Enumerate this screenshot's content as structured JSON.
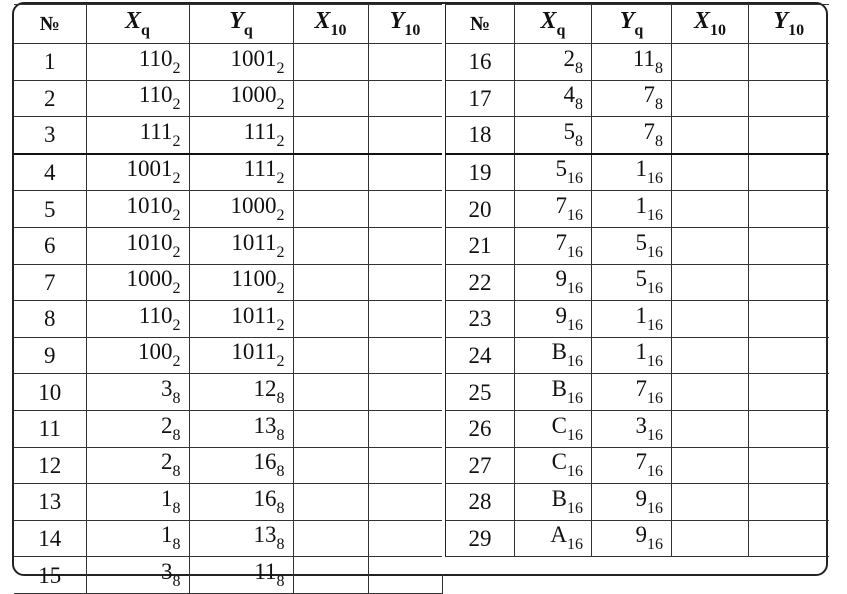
{
  "left": {
    "header": [
      {
        "text": "№"
      },
      {
        "text": "X",
        "sub": "q"
      },
      {
        "text": "Y",
        "sub": "q"
      },
      {
        "text": "X",
        "sub": "10"
      },
      {
        "text": "Y",
        "sub": "10"
      }
    ],
    "rows": [
      {
        "n": "1",
        "x": {
          "v": "110",
          "b": "2"
        },
        "y": {
          "v": "1001",
          "b": "2"
        }
      },
      {
        "n": "2",
        "x": {
          "v": "110",
          "b": "2"
        },
        "y": {
          "v": "1000",
          "b": "2"
        }
      },
      {
        "n": "3",
        "x": {
          "v": "111",
          "b": "2"
        },
        "y": {
          "v": "111",
          "b": "2"
        }
      },
      {
        "n": "4",
        "x": {
          "v": "1001",
          "b": "2"
        },
        "y": {
          "v": "111",
          "b": "2"
        }
      },
      {
        "n": "5",
        "x": {
          "v": "1010",
          "b": "2"
        },
        "y": {
          "v": "1000",
          "b": "2"
        }
      },
      {
        "n": "6",
        "x": {
          "v": "1010",
          "b": "2"
        },
        "y": {
          "v": "1011",
          "b": "2"
        }
      },
      {
        "n": "7",
        "x": {
          "v": "1000",
          "b": "2"
        },
        "y": {
          "v": "1100",
          "b": "2"
        }
      },
      {
        "n": "8",
        "x": {
          "v": "110",
          "b": "2"
        },
        "y": {
          "v": "1011",
          "b": "2"
        }
      },
      {
        "n": "9",
        "x": {
          "v": "100",
          "b": "2"
        },
        "y": {
          "v": "1011",
          "b": "2"
        }
      },
      {
        "n": "10",
        "x": {
          "v": "3",
          "b": "8"
        },
        "y": {
          "v": "12",
          "b": "8"
        }
      },
      {
        "n": "11",
        "x": {
          "v": "2",
          "b": "8"
        },
        "y": {
          "v": "13",
          "b": "8"
        }
      },
      {
        "n": "12",
        "x": {
          "v": "2",
          "b": "8"
        },
        "y": {
          "v": "16",
          "b": "8"
        }
      },
      {
        "n": "13",
        "x": {
          "v": "1",
          "b": "8"
        },
        "y": {
          "v": "16",
          "b": "8"
        }
      },
      {
        "n": "14",
        "x": {
          "v": "1",
          "b": "8"
        },
        "y": {
          "v": "13",
          "b": "8"
        }
      },
      {
        "n": "15",
        "x": {
          "v": "3",
          "b": "8"
        },
        "y": {
          "v": "11",
          "b": "8"
        }
      }
    ]
  },
  "right": {
    "header": [
      {
        "text": "№"
      },
      {
        "text": "X",
        "sub": "q"
      },
      {
        "text": "Y",
        "sub": "q"
      },
      {
        "text": "X",
        "sub": "10"
      },
      {
        "text": "Y",
        "sub": "10"
      }
    ],
    "rows": [
      {
        "n": "16",
        "x": {
          "v": "2",
          "b": "8"
        },
        "y": {
          "v": "11",
          "b": "8"
        }
      },
      {
        "n": "17",
        "x": {
          "v": "4",
          "b": "8"
        },
        "y": {
          "v": "7",
          "b": "8"
        }
      },
      {
        "n": "18",
        "x": {
          "v": "5",
          "b": "8"
        },
        "y": {
          "v": "7",
          "b": "8"
        }
      },
      {
        "n": "19",
        "x": {
          "v": "5",
          "b": "16"
        },
        "y": {
          "v": "1",
          "b": "16"
        }
      },
      {
        "n": "20",
        "x": {
          "v": "7",
          "b": "16"
        },
        "y": {
          "v": "1",
          "b": "16"
        }
      },
      {
        "n": "21",
        "x": {
          "v": "7",
          "b": "16"
        },
        "y": {
          "v": "5",
          "b": "16"
        }
      },
      {
        "n": "22",
        "x": {
          "v": "9",
          "b": "16"
        },
        "y": {
          "v": "5",
          "b": "16"
        }
      },
      {
        "n": "23",
        "x": {
          "v": "9",
          "b": "16"
        },
        "y": {
          "v": "1",
          "b": "16"
        }
      },
      {
        "n": "24",
        "x": {
          "v": "B",
          "b": "16"
        },
        "y": {
          "v": "1",
          "b": "16"
        }
      },
      {
        "n": "25",
        "x": {
          "v": "B",
          "b": "16"
        },
        "y": {
          "v": "7",
          "b": "16"
        }
      },
      {
        "n": "26",
        "x": {
          "v": "C",
          "b": "16"
        },
        "y": {
          "v": "3",
          "b": "16"
        }
      },
      {
        "n": "27",
        "x": {
          "v": "C",
          "b": "16"
        },
        "y": {
          "v": "7",
          "b": "16"
        }
      },
      {
        "n": "28",
        "x": {
          "v": "B",
          "b": "16"
        },
        "y": {
          "v": "9",
          "b": "16"
        }
      },
      {
        "n": "29",
        "x": {
          "v": "A",
          "b": "16"
        },
        "y": {
          "v": "9",
          "b": "16"
        }
      }
    ]
  }
}
